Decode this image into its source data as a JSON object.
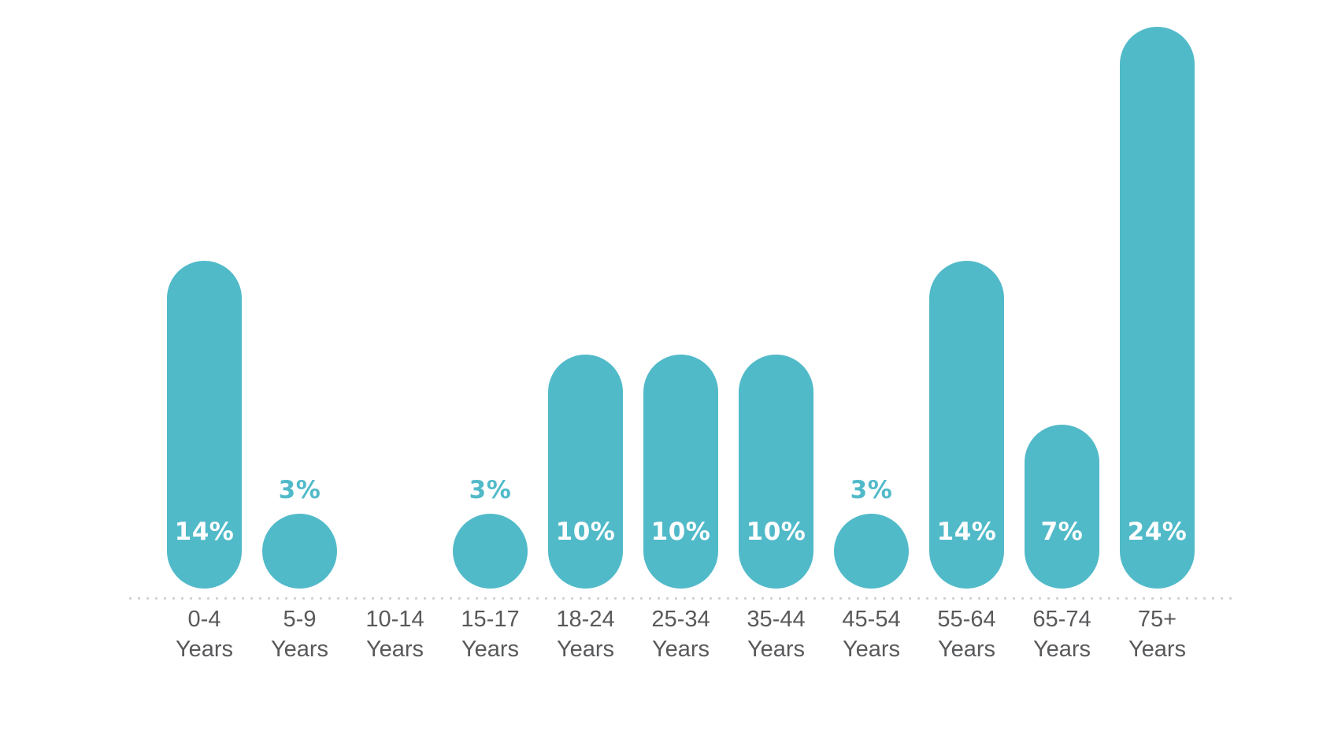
{
  "chart_data": {
    "type": "bar",
    "title": "",
    "xlabel": "",
    "ylabel": "",
    "unit": "%",
    "categories": [
      "0-4",
      "5-9",
      "10-14",
      "15-17",
      "18-24",
      "25-34",
      "35-44",
      "45-54",
      "55-64",
      "65-74",
      "75+"
    ],
    "category_suffix": "Years",
    "values": [
      14,
      3,
      0,
      3,
      10,
      10,
      10,
      3,
      14,
      7,
      24
    ],
    "value_labels": [
      "14%",
      "3%",
      "",
      "3%",
      "10%",
      "10%",
      "10%",
      "3%",
      "14%",
      "7%",
      "24%"
    ],
    "ylim": [
      0,
      24
    ],
    "grid": false,
    "legend": false,
    "bar_shape": "pill-fully-rounded",
    "bar_color": "#51bac9",
    "value_label_color_inside": "#ffffff",
    "value_label_color_outside": "#51bac9",
    "category_label_color": "#58595b",
    "baseline_style": "dotted",
    "baseline_color": "#cfcfcf",
    "label_placement_rule": "value label white inside bar for values >= 7%, teal above bar for 3%, omitted for 0%"
  }
}
